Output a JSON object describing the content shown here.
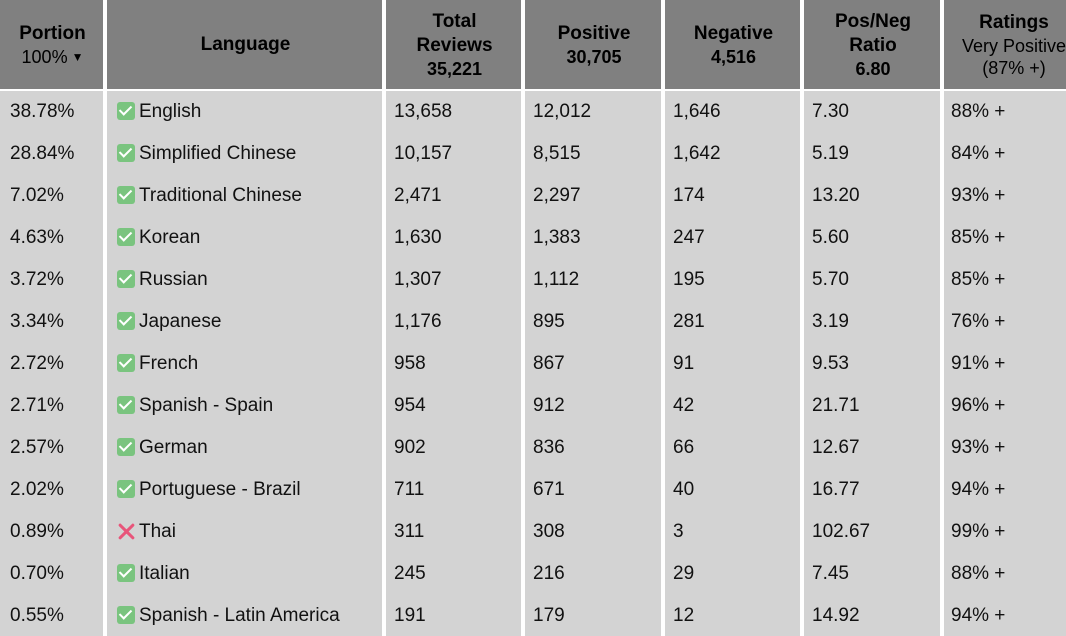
{
  "columns": {
    "portion": {
      "title": "Portion",
      "sub": "100%",
      "sort_indicator": "▼"
    },
    "language": {
      "title": "Language"
    },
    "total": {
      "title_line1": "Total",
      "title_line2": "Reviews",
      "sub": "35,221"
    },
    "positive": {
      "title": "Positive",
      "sub": "30,705"
    },
    "negative": {
      "title": "Negative",
      "sub": "4,516"
    },
    "ratio": {
      "title_line1": "Pos/Neg",
      "title_line2": "Ratio",
      "sub": "6.80"
    },
    "ratings": {
      "title": "Ratings",
      "sub_line1": "Very Positive",
      "sub_line2": "(87% +)"
    }
  },
  "rows": [
    {
      "portion": "38.78%",
      "icon": "check-icon",
      "language": "English",
      "total": "13,658",
      "positive": "12,012",
      "negative": "1,646",
      "ratio": "7.30",
      "rating": "88% +"
    },
    {
      "portion": "28.84%",
      "icon": "check-icon",
      "language": "Simplified Chinese",
      "total": "10,157",
      "positive": "8,515",
      "negative": "1,642",
      "ratio": "5.19",
      "rating": "84% +"
    },
    {
      "portion": "7.02%",
      "icon": "check-icon",
      "language": "Traditional Chinese",
      "total": "2,471",
      "positive": "2,297",
      "negative": "174",
      "ratio": "13.20",
      "rating": "93% +"
    },
    {
      "portion": "4.63%",
      "icon": "check-icon",
      "language": "Korean",
      "total": "1,630",
      "positive": "1,383",
      "negative": "247",
      "ratio": "5.60",
      "rating": "85% +"
    },
    {
      "portion": "3.72%",
      "icon": "check-icon",
      "language": "Russian",
      "total": "1,307",
      "positive": "1,112",
      "negative": "195",
      "ratio": "5.70",
      "rating": "85% +"
    },
    {
      "portion": "3.34%",
      "icon": "check-icon",
      "language": "Japanese",
      "total": "1,176",
      "positive": "895",
      "negative": "281",
      "ratio": "3.19",
      "rating": "76% +"
    },
    {
      "portion": "2.72%",
      "icon": "check-icon",
      "language": "French",
      "total": "958",
      "positive": "867",
      "negative": "91",
      "ratio": "9.53",
      "rating": "91% +"
    },
    {
      "portion": "2.71%",
      "icon": "check-icon",
      "language": "Spanish - Spain",
      "total": "954",
      "positive": "912",
      "negative": "42",
      "ratio": "21.71",
      "rating": "96% +"
    },
    {
      "portion": "2.57%",
      "icon": "check-icon",
      "language": "German",
      "total": "902",
      "positive": "836",
      "negative": "66",
      "ratio": "12.67",
      "rating": "93% +"
    },
    {
      "portion": "2.02%",
      "icon": "check-icon",
      "language": "Portuguese - Brazil",
      "total": "711",
      "positive": "671",
      "negative": "40",
      "ratio": "16.77",
      "rating": "94% +"
    },
    {
      "portion": "0.89%",
      "icon": "cross-icon",
      "language": "Thai",
      "total": "311",
      "positive": "308",
      "negative": "3",
      "ratio": "102.67",
      "rating": "99% +"
    },
    {
      "portion": "0.70%",
      "icon": "check-icon",
      "language": "Italian",
      "total": "245",
      "positive": "216",
      "negative": "29",
      "ratio": "7.45",
      "rating": "88% +"
    },
    {
      "portion": "0.55%",
      "icon": "check-icon",
      "language": "Spanish - Latin America",
      "total": "191",
      "positive": "179",
      "negative": "12",
      "ratio": "14.92",
      "rating": "94% +"
    }
  ]
}
